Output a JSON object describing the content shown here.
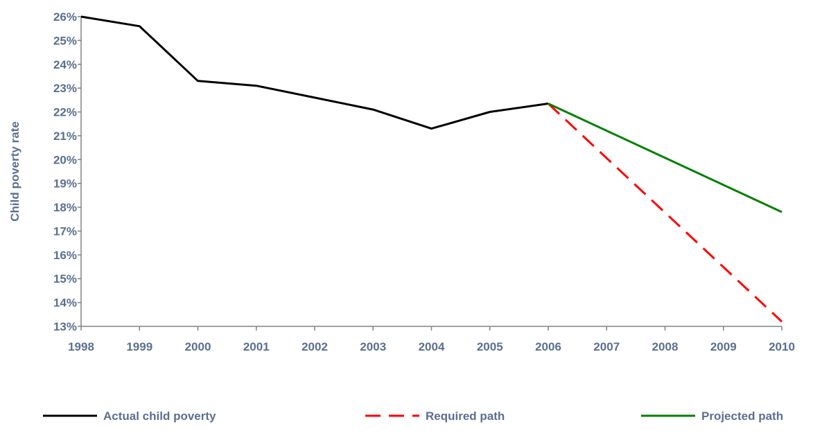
{
  "chart_data": {
    "type": "line",
    "ylabel": "Child poverty rate",
    "xlabel": "",
    "x": [
      "1998",
      "1999",
      "2000",
      "2001",
      "2002",
      "2003",
      "2004",
      "2005",
      "2006",
      "2007",
      "2008",
      "2009",
      "2010"
    ],
    "xlim": [
      1998,
      2010
    ],
    "ylim": [
      13,
      26
    ],
    "y_ticks": [
      "13%",
      "14%",
      "15%",
      "16%",
      "17%",
      "18%",
      "19%",
      "20%",
      "21%",
      "22%",
      "23%",
      "24%",
      "25%",
      "26%"
    ],
    "grid": false,
    "legend_position": "bottom",
    "series": [
      {
        "name": "Actual child poverty",
        "color": "#000000",
        "style": "solid",
        "points": [
          [
            1998,
            26.0
          ],
          [
            1999,
            25.6
          ],
          [
            2000,
            23.3
          ],
          [
            2001,
            23.1
          ],
          [
            2002,
            22.6
          ],
          [
            2003,
            22.1
          ],
          [
            2004,
            21.3
          ],
          [
            2005,
            22.0
          ],
          [
            2006,
            22.35
          ]
        ]
      },
      {
        "name": "Required path",
        "color": "#ff0000",
        "style": "dashed",
        "points": [
          [
            2006,
            22.35
          ],
          [
            2010,
            13.2
          ]
        ]
      },
      {
        "name": "Projected path",
        "color": "#008000",
        "style": "solid",
        "points": [
          [
            2006,
            22.35
          ],
          [
            2010,
            17.8
          ]
        ]
      }
    ]
  },
  "colors": {
    "axis_text": "#5a6f8f",
    "axis_line": "#808080"
  }
}
